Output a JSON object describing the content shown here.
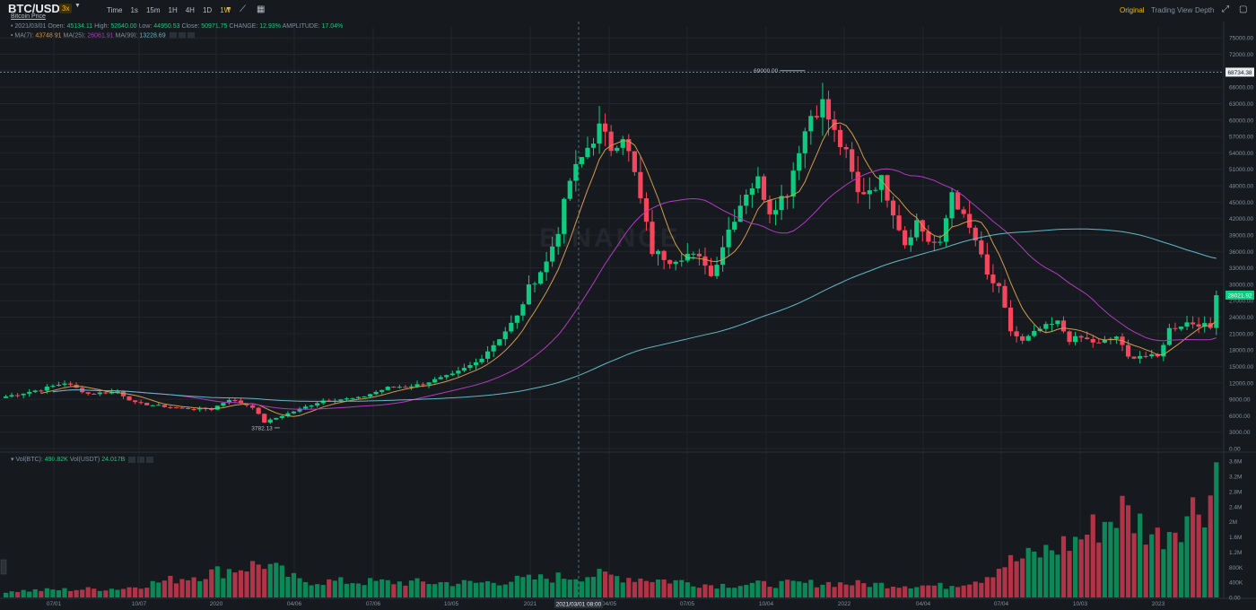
{
  "header": {
    "pair": "BTC/USDT",
    "leverage": "3x",
    "subtitle": "Bitcoin Price",
    "intervals": [
      "Time",
      "1s",
      "15m",
      "1H",
      "4H",
      "1D",
      "1W"
    ],
    "active_interval": "1W",
    "views": [
      "Original",
      "Trading View",
      "Depth"
    ],
    "active_view": "Original"
  },
  "legend": {
    "date": "2021/03/01",
    "open_label": "Open:",
    "open": "45134.11",
    "high_label": "High:",
    "high": "52640.00",
    "low_label": "Low:",
    "low": "44950.53",
    "close_label": "Close:",
    "close": "50971.75",
    "change_label": "CHANGE:",
    "change": "12.93%",
    "amp_label": "AMPLITUDE:",
    "amplitude": "17.04%",
    "ma7_label": "MA(7):",
    "ma7": "43748.91",
    "ma25_label": "MA(25):",
    "ma25": "26061.91",
    "ma99_label": "MA(99):",
    "ma99": "13228.69",
    "vol_btc_label": "Vol(BTC):",
    "vol_btc": "490.82K",
    "vol_usdt_label": "Vol(USDT)",
    "vol_usdt": "24.017B"
  },
  "colors": {
    "up": "#0ecb81",
    "down": "#f6465d",
    "ma7": "#d29a49",
    "ma25": "#b13ac2",
    "ma99": "#5fb8c9",
    "background": "#161a1e",
    "grid": "#22262c"
  },
  "chart_data": {
    "type": "candlestick",
    "watermark": "BINANCE",
    "y_price_ticks": [
      "75000.00",
      "72000.00",
      "69000.00",
      "66000.00",
      "63000.00",
      "60000.00",
      "57000.00",
      "54000.00",
      "51000.00",
      "48000.00",
      "45000.00",
      "42000.00",
      "39000.00",
      "36000.00",
      "33000.00",
      "30000.00",
      "27000.00",
      "24000.00",
      "21000.00",
      "18000.00",
      "15000.00",
      "12000.00",
      "9000.00",
      "6000.00",
      "3000.00",
      "0.00"
    ],
    "y_volume_ticks": [
      "3.6M",
      "3.2M",
      "2.8M",
      "2.4M",
      "2M",
      "1.6M",
      "1.2M",
      "800K",
      "400K",
      "0.00"
    ],
    "x_ticks": [
      "07/01",
      "10/07",
      "2020",
      "04/06",
      "07/06",
      "10/05",
      "2021",
      "04/05",
      "07/05",
      "10/04",
      "2022",
      "04/04",
      "07/04",
      "10/03",
      "2023"
    ],
    "crosshair_date": "2021/03/01 08:00",
    "current_price": "68734.38",
    "last_price": "28021.92",
    "high_annotation": "69000.00",
    "low_annotation": "3782.13",
    "ylim_price": [
      0,
      77000
    ],
    "ylim_volume": [
      0,
      3700000
    ],
    "close_anchors": [
      [
        0,
        9500
      ],
      [
        6,
        10800
      ],
      [
        10,
        12000
      ],
      [
        14,
        10000
      ],
      [
        19,
        10400
      ],
      [
        22,
        8300
      ],
      [
        30,
        7300
      ],
      [
        35,
        7200
      ],
      [
        38,
        9000
      ],
      [
        42,
        7600
      ],
      [
        44,
        4800
      ],
      [
        49,
        6800
      ],
      [
        54,
        8800
      ],
      [
        60,
        9200
      ],
      [
        65,
        11100
      ],
      [
        70,
        11600
      ],
      [
        76,
        13400
      ],
      [
        80,
        15700
      ],
      [
        83,
        19000
      ],
      [
        87,
        24000
      ],
      [
        89,
        29300
      ],
      [
        92,
        34000
      ],
      [
        94,
        40000
      ],
      [
        96,
        49000
      ],
      [
        99,
        55000
      ],
      [
        101,
        58500
      ],
      [
        103,
        55000
      ],
      [
        105,
        57500
      ],
      [
        107,
        50000
      ],
      [
        110,
        36000
      ],
      [
        113,
        34500
      ],
      [
        116,
        35500
      ],
      [
        119,
        34000
      ],
      [
        120,
        31500
      ],
      [
        123,
        40000
      ],
      [
        126,
        47000
      ],
      [
        128,
        49000
      ],
      [
        130,
        43500
      ],
      [
        133,
        47000
      ],
      [
        135,
        55000
      ],
      [
        137,
        61000
      ],
      [
        139,
        63000
      ],
      [
        141,
        57500
      ],
      [
        143,
        53500
      ],
      [
        145,
        46500
      ],
      [
        147,
        47500
      ],
      [
        149,
        49000
      ],
      [
        151,
        43500
      ],
      [
        153,
        37500
      ],
      [
        155,
        41500
      ],
      [
        157,
        38000
      ],
      [
        159,
        37000
      ],
      [
        161,
        47000
      ],
      [
        163,
        42000
      ],
      [
        165,
        38000
      ],
      [
        167,
        31500
      ],
      [
        169,
        29000
      ],
      [
        171,
        21500
      ],
      [
        173,
        19500
      ],
      [
        176,
        21800
      ],
      [
        179,
        23000
      ],
      [
        181,
        19900
      ],
      [
        183,
        20200
      ],
      [
        186,
        19100
      ],
      [
        189,
        20500
      ],
      [
        191,
        16600
      ],
      [
        193,
        17000
      ],
      [
        196,
        16700
      ],
      [
        198,
        21800
      ],
      [
        201,
        23000
      ],
      [
        203,
        22800
      ],
      [
        205,
        22000
      ],
      [
        206,
        28000
      ]
    ],
    "volume_anchors": [
      [
        0,
        170000
      ],
      [
        20,
        240000
      ],
      [
        44,
        900000
      ],
      [
        50,
        430000
      ],
      [
        80,
        380000
      ],
      [
        100,
        600000
      ],
      [
        115,
        420000
      ],
      [
        120,
        330000
      ],
      [
        140,
        380000
      ],
      [
        160,
        300000
      ],
      [
        166,
        500000
      ],
      [
        170,
        900000
      ],
      [
        175,
        1100000
      ],
      [
        182,
        1500000
      ],
      [
        190,
        2300000
      ],
      [
        196,
        1600000
      ],
      [
        205,
        2700000
      ],
      [
        206,
        3700000
      ]
    ]
  }
}
